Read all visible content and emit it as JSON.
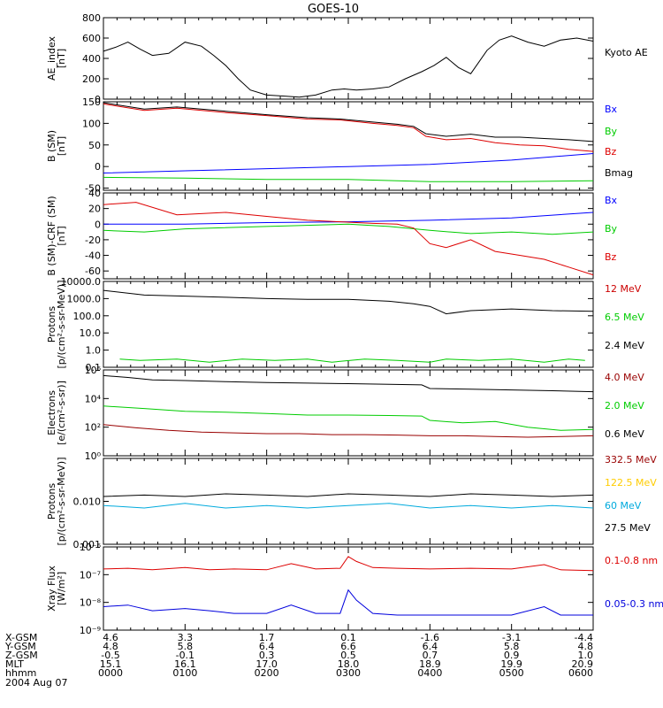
{
  "chart_data": {
    "type": "line",
    "title": "GOES-10",
    "x_ticks": [
      "0000",
      "0100",
      "0200",
      "0300",
      "0400",
      "0500",
      "0600"
    ],
    "xlim": [
      "0000",
      "0600"
    ],
    "footer": {
      "rows": [
        {
          "label": "X-GSM",
          "values": [
            "4.6",
            "3.3",
            "1.7",
            "0.1",
            "-1.6",
            "-3.1",
            "-4.4"
          ]
        },
        {
          "label": "Y-GSM",
          "values": [
            "4.8",
            "5.8",
            "6.4",
            "6.6",
            "6.4",
            "5.8",
            "4.8"
          ]
        },
        {
          "label": "Z-GSM",
          "values": [
            "-0.5",
            "-0.1",
            "0.3",
            "0.5",
            "0.7",
            "0.9",
            "1.0"
          ]
        },
        {
          "label": "MLT",
          "values": [
            "15.1",
            "16.1",
            "17.0",
            "18.0",
            "18.9",
            "19.9",
            "20.9"
          ]
        },
        {
          "label": "hhmm",
          "values": [
            "0000",
            "0100",
            "0200",
            "0300",
            "0400",
            "0500",
            "0600"
          ]
        }
      ],
      "date": "2004 Aug 07"
    },
    "panels": [
      {
        "id": "ae",
        "ylabel": [
          "AE_index",
          "[nT]"
        ],
        "yscale": "linear",
        "ylim": [
          0,
          800
        ],
        "yticks": [
          "800",
          "600",
          "400",
          "200",
          "0"
        ],
        "ytick_values": [
          800,
          600,
          400,
          200,
          0
        ],
        "series": [
          {
            "name": "Kyoto AE",
            "color": "#000000",
            "x": [
              0,
              0.15,
              0.3,
              0.45,
              0.6,
              0.8,
              1.0,
              1.2,
              1.35,
              1.5,
              1.65,
              1.8,
              2.0,
              2.2,
              2.4,
              2.6,
              2.8,
              2.95,
              3.1,
              3.3,
              3.5,
              3.7,
              3.9,
              4.05,
              4.2,
              4.35,
              4.5,
              4.7,
              4.85,
              5.0,
              5.2,
              5.4,
              5.6,
              5.8,
              6.0
            ],
            "y": [
              470,
              510,
              560,
              490,
              430,
              450,
              560,
              520,
              430,
              330,
              200,
              90,
              40,
              30,
              20,
              40,
              90,
              100,
              90,
              100,
              120,
              200,
              270,
              330,
              410,
              310,
              250,
              480,
              580,
              620,
              560,
              520,
              580,
              600,
              570
            ]
          }
        ]
      },
      {
        "id": "b_sm",
        "ylabel": [
          "B (SM)",
          "[nT]"
        ],
        "yscale": "linear",
        "ylim": [
          -55,
          150
        ],
        "yticks": [
          "150",
          "100",
          "50",
          "0",
          "-50"
        ],
        "ytick_values": [
          150,
          100,
          50,
          0,
          -50
        ],
        "series": [
          {
            "name": "Bx",
            "color": "#0000ff",
            "x": [
              0,
              1,
              2,
              3,
              4,
              5,
              6
            ],
            "y": [
              -15,
              -10,
              -5,
              0,
              5,
              15,
              30
            ]
          },
          {
            "name": "By",
            "color": "#00cc00",
            "x": [
              0,
              1,
              2,
              3,
              4,
              5,
              6
            ],
            "y": [
              -25,
              -27,
              -30,
              -30,
              -35,
              -35,
              -33
            ]
          },
          {
            "name": "Bz",
            "color": "#dd0000",
            "x": [
              0,
              0.5,
              0.9,
              1.5,
              2.0,
              2.5,
              2.9,
              3.3,
              3.6,
              3.8,
              3.95,
              4.2,
              4.5,
              4.8,
              5.1,
              5.4,
              5.7,
              6.0
            ],
            "y": [
              145,
              130,
              135,
              125,
              118,
              110,
              108,
              100,
              95,
              90,
              70,
              62,
              65,
              55,
              50,
              48,
              40,
              35
            ]
          },
          {
            "name": "Bmag",
            "color": "#000000",
            "x": [
              0,
              0.5,
              0.9,
              1.5,
              2.0,
              2.5,
              2.9,
              3.3,
              3.6,
              3.8,
              3.95,
              4.2,
              4.5,
              4.8,
              5.1,
              5.4,
              5.7,
              6.0
            ],
            "y": [
              148,
              133,
              138,
              128,
              120,
              113,
              110,
              103,
              98,
              93,
              76,
              70,
              75,
              68,
              68,
              65,
              62,
              58
            ]
          }
        ]
      },
      {
        "id": "b_diff",
        "ylabel": [
          "B (SM)-CRF (SM)",
          "[nT]"
        ],
        "yscale": "linear",
        "ylim": [
          -70,
          40
        ],
        "yticks": [
          "40",
          "20",
          "0",
          "-20",
          "-40",
          "-60"
        ],
        "ytick_values": [
          40,
          20,
          0,
          -20,
          -40,
          -60
        ],
        "series": [
          {
            "name": "Bx",
            "color": "#0000ff",
            "x": [
              0,
              1,
              2,
              3,
              4,
              5,
              6
            ],
            "y": [
              0,
              0,
              2,
              3,
              5,
              8,
              15
            ]
          },
          {
            "name": "By",
            "color": "#00cc00",
            "x": [
              0,
              0.5,
              1,
              2,
              3,
              3.5,
              4,
              4.5,
              5,
              5.5,
              6
            ],
            "y": [
              -8,
              -10,
              -6,
              -3,
              0,
              -3,
              -8,
              -12,
              -10,
              -13,
              -10
            ]
          },
          {
            "name": "Bz",
            "color": "#dd0000",
            "x": [
              0,
              0.4,
              0.9,
              1.5,
              2.0,
              2.5,
              2.9,
              3.3,
              3.6,
              3.8,
              4.0,
              4.2,
              4.5,
              4.8,
              5.1,
              5.4,
              5.7,
              6.0
            ],
            "y": [
              25,
              28,
              12,
              15,
              10,
              5,
              3,
              1,
              0,
              -5,
              -25,
              -30,
              -20,
              -35,
              -40,
              -45,
              -55,
              -65
            ]
          }
        ]
      },
      {
        "id": "protons_hi",
        "ylabel": [
          "Protons",
          "[p/(cm²-s-sr-MeV)]"
        ],
        "yscale": "log",
        "ylim": [
          0.1,
          10000
        ],
        "yticks": [
          "10000.0",
          "1000.0",
          "100.0",
          "10.0",
          "1.0",
          "0.1"
        ],
        "ytick_values": [
          10000,
          1000,
          100,
          10,
          1,
          0.1
        ],
        "series": [
          {
            "name": "12 MeV",
            "color": "#cc0000",
            "x": [],
            "y": []
          },
          {
            "name": "6.5 MeV",
            "color": "#00cc00",
            "x": [
              0.2,
              0.45,
              0.9,
              1.3,
              1.7,
              2.1,
              2.5,
              2.8,
              3.2,
              3.6,
              4.0,
              4.2,
              4.6,
              5.0,
              5.4,
              5.7,
              5.9
            ],
            "y": [
              0.3,
              0.25,
              0.3,
              0.2,
              0.3,
              0.25,
              0.3,
              0.2,
              0.3,
              0.25,
              0.2,
              0.3,
              0.25,
              0.3,
              0.2,
              0.3,
              0.25
            ]
          },
          {
            "name": "2.4 MeV",
            "color": "#000000",
            "x": [
              0,
              0.5,
              1,
              1.5,
              2,
              2.5,
              3,
              3.5,
              3.8,
              4,
              4.2,
              4.5,
              5,
              5.5,
              6
            ],
            "y": [
              3000,
              1600,
              1400,
              1200,
              1000,
              900,
              900,
              700,
              500,
              350,
              130,
              200,
              250,
              200,
              180
            ]
          }
        ]
      },
      {
        "id": "electrons",
        "ylabel": [
          "Electrons",
          "[e/(cm²-s-sr)]"
        ],
        "yscale": "log",
        "ylim": [
          1,
          1000000.0
        ],
        "yticks": [
          "10⁶",
          "10⁴",
          "10²",
          "10⁰"
        ],
        "ytick_values": [
          1000000.0,
          10000.0,
          100.0,
          1
        ],
        "series": [
          {
            "name": "4.0 MeV",
            "color": "#990000",
            "x": [
              0,
              0.4,
              0.8,
              1.2,
              1.6,
              2,
              2.4,
              2.8,
              3.2,
              3.6,
              4,
              4.4,
              4.8,
              5.2,
              5.6,
              6
            ],
            "y": [
              150,
              90,
              60,
              45,
              40,
              35,
              35,
              30,
              30,
              28,
              25,
              25,
              22,
              20,
              22,
              25
            ]
          },
          {
            "name": "2.0 MeV",
            "color": "#00cc00",
            "x": [
              0,
              0.5,
              1,
              1.5,
              2,
              2.5,
              3,
              3.5,
              3.9,
              4.0,
              4.4,
              4.8,
              5.2,
              5.6,
              6
            ],
            "y": [
              3000,
              2000,
              1300,
              1100,
              900,
              700,
              700,
              650,
              600,
              300,
              200,
              250,
              100,
              60,
              70
            ]
          },
          {
            "name": "0.6 MeV",
            "color": "#000000",
            "x": [
              0,
              0.3,
              0.6,
              1,
              1.5,
              2,
              2.5,
              3,
              3.5,
              3.9,
              4.0,
              4.5,
              5,
              5.5,
              6
            ],
            "y": [
              400000,
              300000,
              200000,
              180000,
              150000,
              130000,
              120000,
              110000,
              100000,
              90000,
              50000,
              45000,
              40000,
              35000,
              30000
            ]
          }
        ]
      },
      {
        "id": "protons_lo",
        "ylabel": [
          "Protons",
          "[p/(cm²-s-sr-MeV)]"
        ],
        "yscale": "log",
        "ylim": [
          0.001,
          0.1
        ],
        "yticks": [
          "0.010",
          "0.001"
        ],
        "ytick_values": [
          0.01,
          0.001
        ],
        "series": [
          {
            "name": "332.5 MeV",
            "color": "#990000",
            "x": [],
            "y": []
          },
          {
            "name": "122.5 MeV",
            "color": "#ffcc00",
            "x": [],
            "y": []
          },
          {
            "name": "60 MeV",
            "color": "#00aadd",
            "x": [
              0,
              0.5,
              1,
              1.5,
              2,
              2.5,
              3,
              3.5,
              4,
              4.5,
              5,
              5.5,
              6
            ],
            "y": [
              0.008,
              0.007,
              0.009,
              0.007,
              0.008,
              0.007,
              0.008,
              0.009,
              0.007,
              0.008,
              0.007,
              0.008,
              0.007
            ]
          },
          {
            "name": "27.5 MeV",
            "color": "#000000",
            "x": [
              0,
              0.5,
              1,
              1.5,
              2,
              2.5,
              3,
              3.5,
              4,
              4.5,
              5,
              5.5,
              6
            ],
            "y": [
              0.013,
              0.014,
              0.013,
              0.015,
              0.014,
              0.013,
              0.015,
              0.014,
              0.013,
              0.015,
              0.014,
              0.013,
              0.014
            ]
          }
        ]
      },
      {
        "id": "xray",
        "ylabel": [
          "Xray Flux",
          "[W/m²]"
        ],
        "yscale": "log",
        "ylim": [
          1e-09,
          1e-06
        ],
        "yticks": [
          "10⁻⁶",
          "10⁻⁷",
          "10⁻⁸",
          "10⁻⁹"
        ],
        "ytick_values": [
          1e-06,
          1e-07,
          1e-08,
          1e-09
        ],
        "series": [
          {
            "name": "0.1-0.8 nm",
            "color": "#dd0000",
            "x": [
              0,
              0.3,
              0.6,
              1.0,
              1.3,
              1.6,
              2.0,
              2.3,
              2.6,
              2.9,
              3.0,
              3.1,
              3.3,
              3.6,
              4.0,
              4.5,
              5.0,
              5.4,
              5.6,
              6.0
            ],
            "y": [
              1.6e-07,
              1.7e-07,
              1.5e-07,
              1.8e-07,
              1.5e-07,
              1.6e-07,
              1.5e-07,
              2.5e-07,
              1.6e-07,
              1.7e-07,
              4.5e-07,
              3e-07,
              1.8e-07,
              1.7e-07,
              1.6e-07,
              1.7e-07,
              1.6e-07,
              2.3e-07,
              1.5e-07,
              1.4e-07
            ]
          },
          {
            "name": "0.05-0.3 nm",
            "color": "#0000dd",
            "x": [
              0,
              0.3,
              0.6,
              1.0,
              1.3,
              1.6,
              2.0,
              2.3,
              2.6,
              2.9,
              3.0,
              3.1,
              3.3,
              3.6,
              4.0,
              4.5,
              5.0,
              5.4,
              5.6,
              6.0
            ],
            "y": [
              7e-09,
              8e-09,
              5e-09,
              6e-09,
              5e-09,
              4e-09,
              4e-09,
              8e-09,
              4e-09,
              4e-09,
              2.8e-08,
              1.2e-08,
              4e-09,
              3.5e-09,
              3.5e-09,
              3.5e-09,
              3.5e-09,
              7e-09,
              3.5e-09,
              3.5e-09
            ]
          }
        ]
      }
    ]
  }
}
